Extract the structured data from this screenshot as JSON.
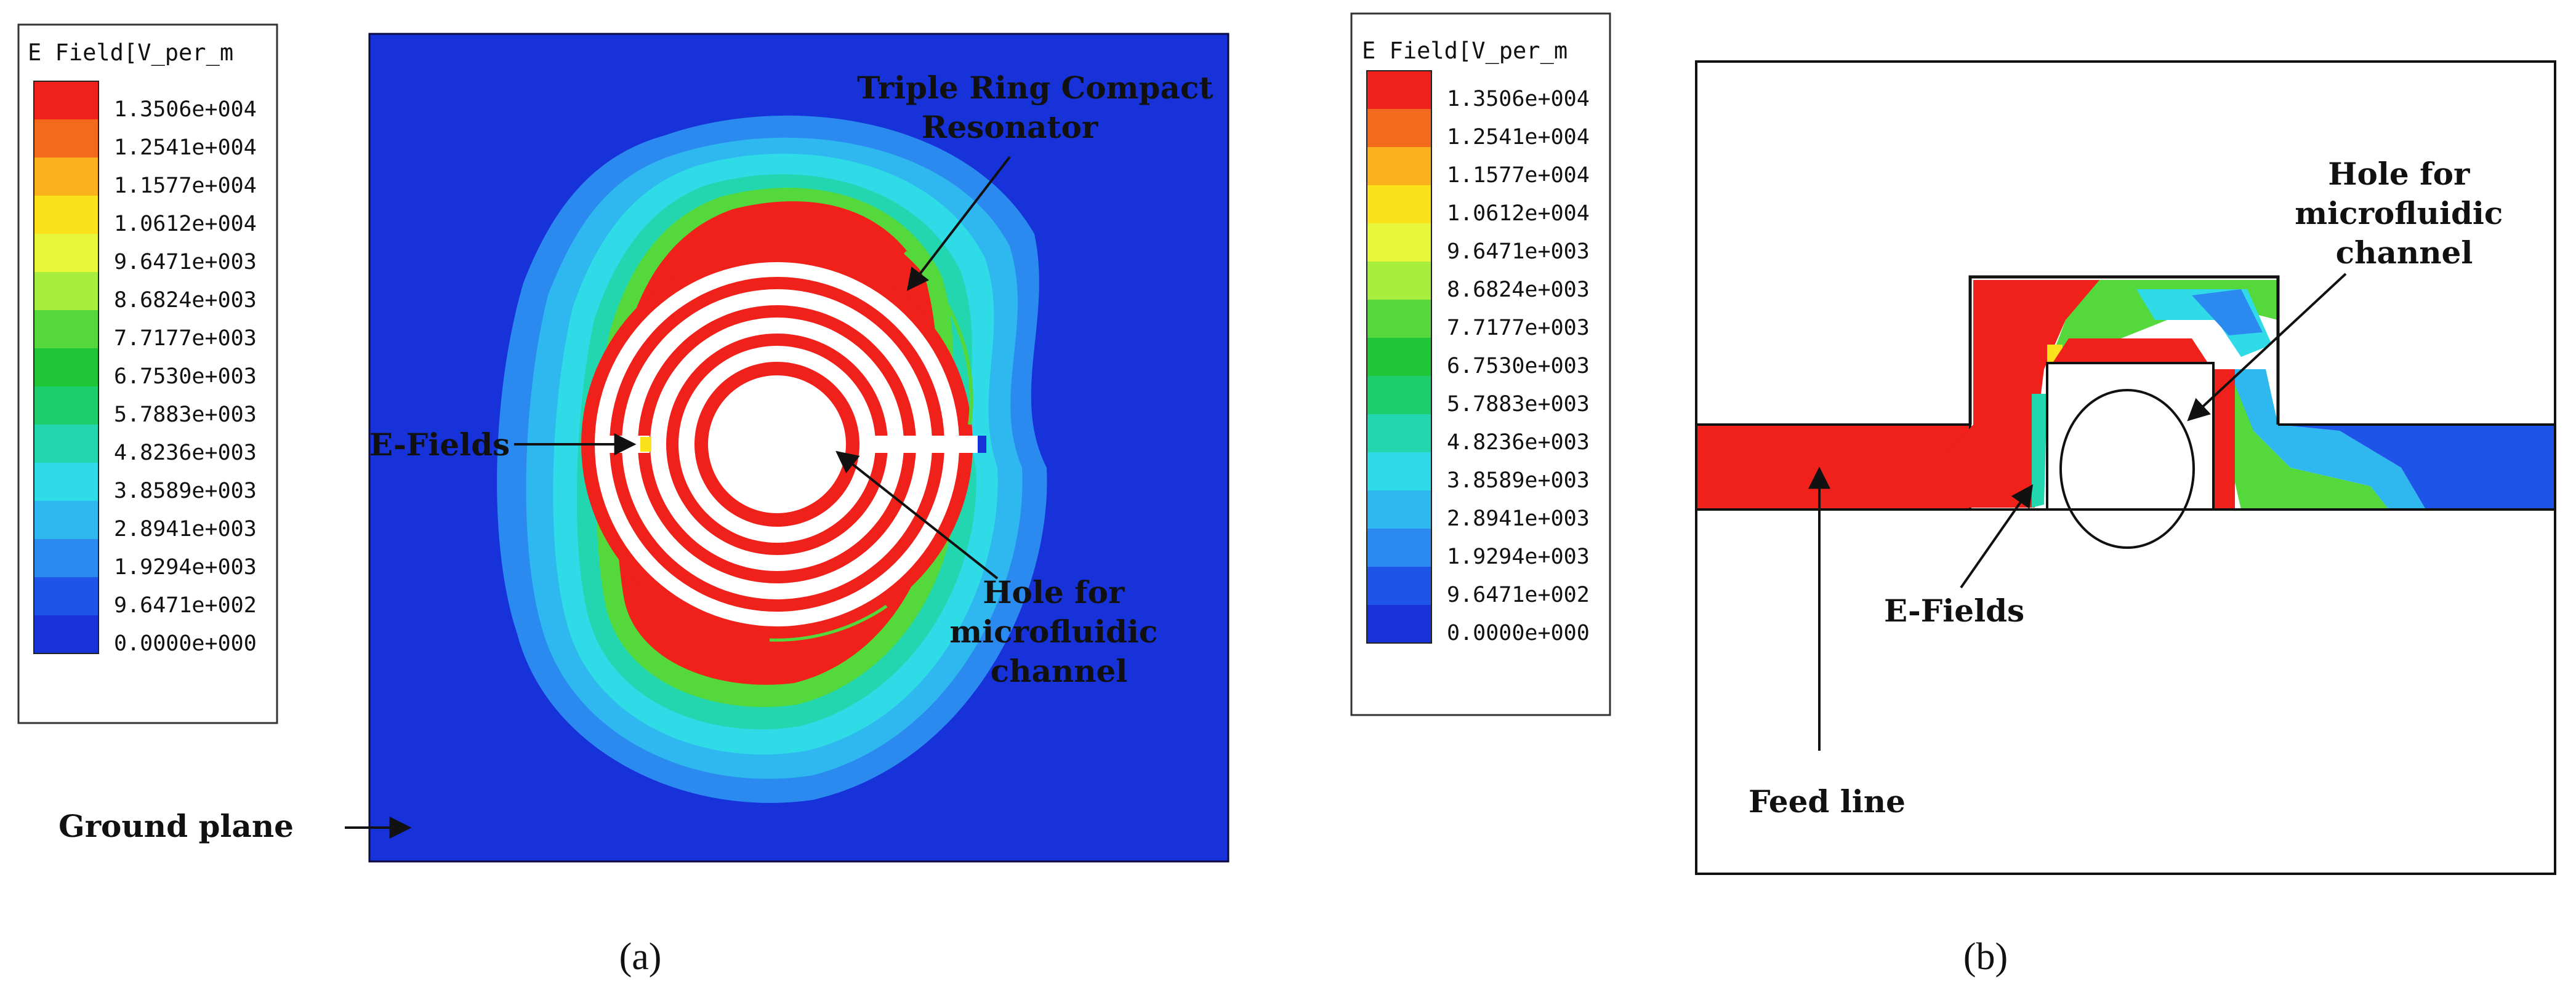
{
  "legend": {
    "title": "E Field[V_per_m",
    "values": [
      "1.3506e+004",
      "1.2541e+004",
      "1.1577e+004",
      "1.0612e+004",
      "9.6471e+003",
      "8.6824e+003",
      "7.7177e+003",
      "6.7530e+003",
      "5.7883e+003",
      "4.8236e+003",
      "3.8589e+003",
      "2.8941e+003",
      "1.9294e+003",
      "9.6471e+002",
      "0.0000e+000"
    ],
    "colors": [
      "#f0201a",
      "#f46a1c",
      "#f9b21b",
      "#fbe21a",
      "#e8f73a",
      "#a8ee3f",
      "#55d83b",
      "#1fc736",
      "#1dcd6e",
      "#22d6b0",
      "#2fdbe6",
      "#2fb8f0",
      "#2b8af0",
      "#1c55e8",
      "#1632d8"
    ]
  },
  "panel_a": {
    "label_resonator": "Triple Ring Compact Resonator",
    "label_efields": "E-Fields",
    "label_hole": "Hole for microfluidic channel",
    "label_ground": "Ground plane",
    "caption": "(a)"
  },
  "panel_b": {
    "label_hole": "Hole for microfluidic channel",
    "label_efields": "E-Fields",
    "label_feed": "Feed line",
    "caption": "(b)"
  }
}
